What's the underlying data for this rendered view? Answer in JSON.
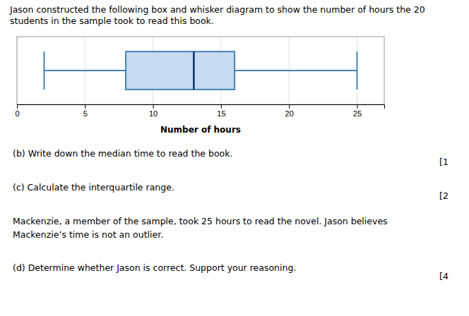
{
  "chart_data": {
    "type": "box",
    "title": "Jason constructed the following box and whisker diagram to show the number of hours the 20\nstudents in the sample took to read this book.",
    "xlabel": "Number of hours",
    "xlim": [
      0,
      27
    ],
    "xticks": [
      0,
      5,
      10,
      15,
      20,
      25
    ],
    "grid": true,
    "tick_labels": "x",
    "box": {
      "whisker_low": 2,
      "q1": 8,
      "median": 13,
      "q3": 16,
      "whisker_high": 25
    },
    "annotations": [
      {
        "text": "(b) Write down the median time to read the book.",
        "right_text": "[1"
      },
      {
        "text": "(c) Calculate the interquartile range.",
        "right_text": "[2"
      },
      {
        "text": "Mackenzie, a member of the sample, took 25 hours to read the novel. Jason believes\nMackenzie’s time is not an outlier."
      },
      {
        "text": "(d) Determine whether Jason is correct. Support your reasoning.",
        "right_text": "[4"
      }
    ]
  }
}
